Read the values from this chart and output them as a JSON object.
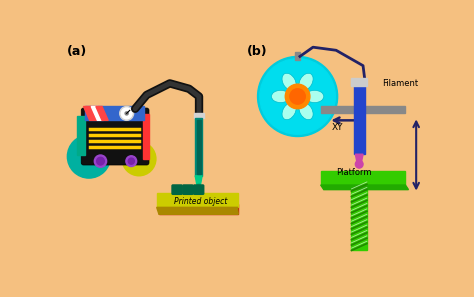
{
  "bg_color": "#f5c080",
  "label_a": "(a)",
  "label_b": "(b)",
  "label_filament": "Filament",
  "label_xy": "XY",
  "label_platform": "Platform",
  "label_printed": "Printed object",
  "colors": {
    "machine_body": "#111111",
    "machine_wheel_left": "#00b0a0",
    "machine_wheel_right": "#cccc00",
    "machine_stripe": "#ff3333",
    "machine_top_blue": "#3366cc",
    "machine_top_stripe_red": "#ff4444",
    "machine_lines": "#ffcc00",
    "machine_green_side": "#00aa88",
    "hose": "#111111",
    "syringe_body": "#008877",
    "syringe_tip": "#00cc88",
    "printed_object_top": "#cccc00",
    "printed_object_side": "#cc0000",
    "printed_bumps": "#006644",
    "spool_outer": "#00ccdd",
    "spool_flower_petal": "#aaffee",
    "spool_center": "#ff8800",
    "filament_line": "#222266",
    "extruder_body": "#2244cc",
    "extruder_cap": "#cccccc",
    "extruder_tip": "#cc44aa",
    "rail_color": "#888888",
    "platform_green": "#33cc00",
    "screw_color": "#33cc00",
    "arrow_color": "#222266",
    "z_arrow_color": "#222266"
  }
}
